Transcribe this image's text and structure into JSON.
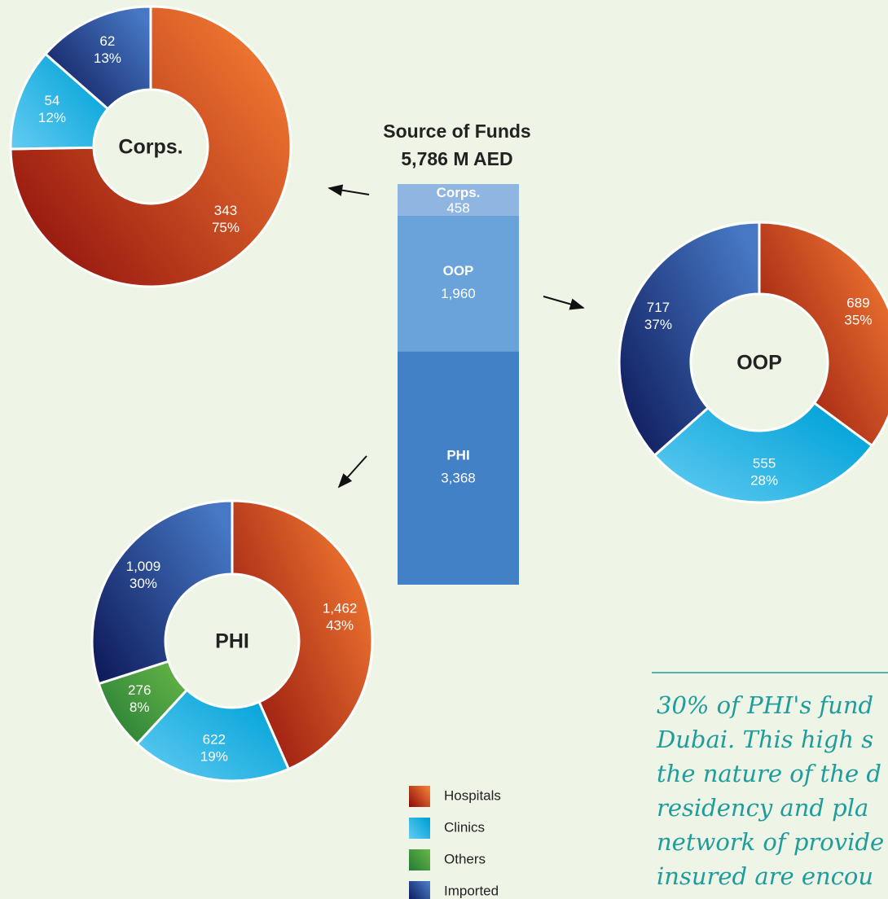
{
  "chart_data": [
    {
      "type": "stacked-bar",
      "title": "Source of Funds",
      "subtitle": "5,786 M AED",
      "series": [
        {
          "name": "Corps.",
          "color": "#8fb6e0",
          "values": [
            458
          ],
          "value_labels": [
            "458"
          ]
        },
        {
          "name": "OOP",
          "color": "#69a3d9",
          "values": [
            1960
          ],
          "value_labels": [
            "1,960"
          ]
        },
        {
          "name": "PHI",
          "color": "#4281c5",
          "values": [
            3368
          ],
          "value_labels": [
            "3,368"
          ]
        }
      ]
    },
    {
      "type": "donut",
      "title": "Corps.",
      "categories": [
        "Hospitals",
        "Clinics",
        "Imported"
      ],
      "values": [
        343,
        54,
        62
      ],
      "value_labels": [
        "343",
        "54",
        "62"
      ],
      "percent_labels": [
        "75%",
        "12%",
        "13%"
      ]
    },
    {
      "type": "donut",
      "title": "OOP",
      "categories": [
        "Hospitals",
        "Clinics",
        "Imported"
      ],
      "values": [
        689,
        555,
        717
      ],
      "value_labels": [
        "689",
        "555",
        "717"
      ],
      "percent_labels": [
        "35%",
        "28%",
        "37%"
      ]
    },
    {
      "type": "donut",
      "title": "PHI",
      "categories": [
        "Hospitals",
        "Clinics",
        "Others",
        "Imported"
      ],
      "values": [
        1462,
        622,
        276,
        1009
      ],
      "value_labels": [
        "1,462",
        "622",
        "276",
        "1,009"
      ],
      "percent_labels": [
        "43%",
        "19%",
        "8%",
        "30%"
      ]
    }
  ],
  "legend": [
    {
      "name": "Hospitals",
      "colors": [
        "#8a0a0a",
        "#f37a32"
      ]
    },
    {
      "name": "Clinics",
      "colors": [
        "#63ccf2",
        "#00a2d8"
      ]
    },
    {
      "name": "Others",
      "colors": [
        "#237a34",
        "#62b247"
      ]
    },
    {
      "name": "Imported",
      "colors": [
        "#0c1656",
        "#4678c4"
      ]
    }
  ],
  "note": [
    "30% of PHI's fund",
    "Dubai. This high s",
    "the nature of the d",
    "residency and pla",
    "network of provide",
    "insured are encou"
  ]
}
